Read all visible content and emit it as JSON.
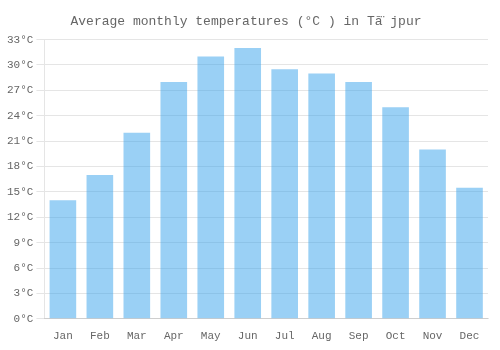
{
  "chart_data": {
    "type": "bar",
    "title": "Average monthly temperatures (°C ) in Tā̈ jpur",
    "categories": [
      "Jan",
      "Feb",
      "Mar",
      "Apr",
      "May",
      "Jun",
      "Jul",
      "Aug",
      "Sep",
      "Oct",
      "Nov",
      "Dec"
    ],
    "values": [
      14,
      17,
      22,
      28,
      31,
      32,
      29.5,
      29,
      28,
      25,
      20,
      15.5
    ],
    "ylim": [
      0,
      33
    ],
    "yticks": [
      {
        "value": 0,
        "label": "0°C"
      },
      {
        "value": 3,
        "label": "3°C"
      },
      {
        "value": 6,
        "label": "6°C"
      },
      {
        "value": 9,
        "label": "9°C"
      },
      {
        "value": 12,
        "label": "12°C"
      },
      {
        "value": 15,
        "label": "15°C"
      },
      {
        "value": 18,
        "label": "18°C"
      },
      {
        "value": 21,
        "label": "21°C"
      },
      {
        "value": 24,
        "label": "24°C"
      },
      {
        "value": 27,
        "label": "27°C"
      },
      {
        "value": 30,
        "label": "30°C"
      },
      {
        "value": 33,
        "label": "33°C"
      }
    ],
    "grid": true
  }
}
